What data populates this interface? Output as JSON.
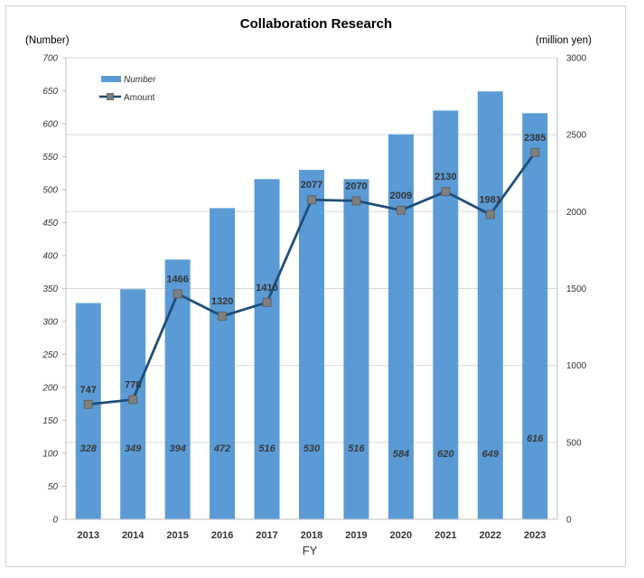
{
  "chart_data": {
    "type": "bar",
    "title": "Collaboration Research",
    "ylabel_left": "(Number)",
    "ylabel_right": "(million yen)",
    "xlabel": "FY",
    "categories": [
      "2013",
      "2014",
      "2015",
      "2016",
      "2017",
      "2018",
      "2019",
      "2020",
      "2021",
      "2022",
      "2023"
    ],
    "series": [
      {
        "name": "Number",
        "type": "bar",
        "axis": "left",
        "color": "#5b9bd5",
        "values": [
          328,
          349,
          394,
          472,
          516,
          530,
          516,
          584,
          620,
          649,
          616
        ]
      },
      {
        "name": "Amount",
        "type": "line",
        "axis": "right",
        "color": "#1f4e79",
        "marker_color": "#7f7f7f",
        "values": [
          747,
          778,
          1466,
          1320,
          1410,
          2077,
          2070,
          2009,
          2130,
          1981,
          2385
        ]
      }
    ],
    "ylim_left": [
      0,
      700
    ],
    "ylim_right": [
      0,
      3000
    ],
    "yticks_left": [
      "0",
      "50",
      "100",
      "150",
      "200",
      "250",
      "300",
      "350",
      "400",
      "450",
      "500",
      "550",
      "600",
      "650",
      "700"
    ],
    "yticks_right": [
      "0",
      "500",
      "1000",
      "1500",
      "2000",
      "2500",
      "3000"
    ],
    "grid": true,
    "legend_position": "top-left"
  }
}
